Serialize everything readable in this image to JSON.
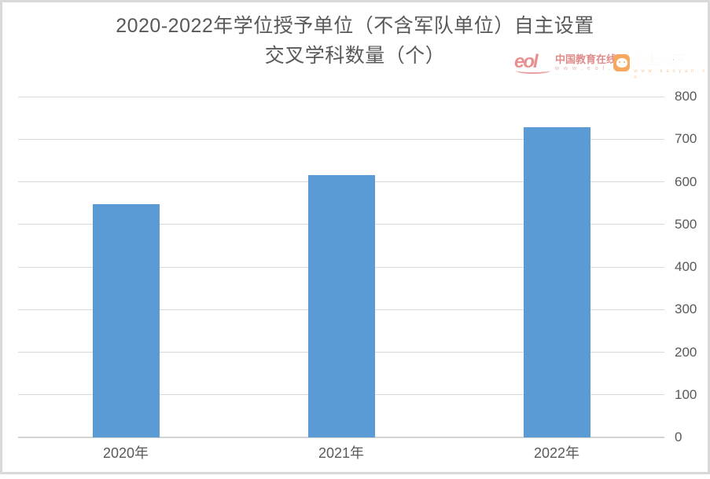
{
  "title": {
    "line1": "2020-2022年学位授予单位（不含军队单位）自主设置",
    "line2": "交叉学科数量（个）"
  },
  "logos": {
    "eol": {
      "mark": "eol",
      "name": "中国教育在线",
      "url": "w w w . e o l . c n",
      "color": "#e08a8a"
    },
    "kaoyan": {
      "name": "掌上考研",
      "url": "w w w . k a o y a n . c n",
      "color": "#f5a661"
    }
  },
  "chart_data": {
    "type": "bar",
    "title": "2020-2022年学位授予单位（不含军队单位）自主设置交叉学科数量（个）",
    "categories": [
      "2020年",
      "2021年",
      "2022年"
    ],
    "values": [
      547,
      616,
      728
    ],
    "xlabel": "",
    "ylabel": "",
    "ylim": [
      0,
      800
    ],
    "ytick_step": 100,
    "yticks": [
      "800",
      "700",
      "600",
      "500",
      "400",
      "300",
      "200",
      "100",
      "0"
    ],
    "axis_side": "right",
    "grid": true,
    "legend": false,
    "bar_color": "#5b9bd5",
    "gridline_color": "#d9d9d9",
    "text_color": "#595959"
  }
}
